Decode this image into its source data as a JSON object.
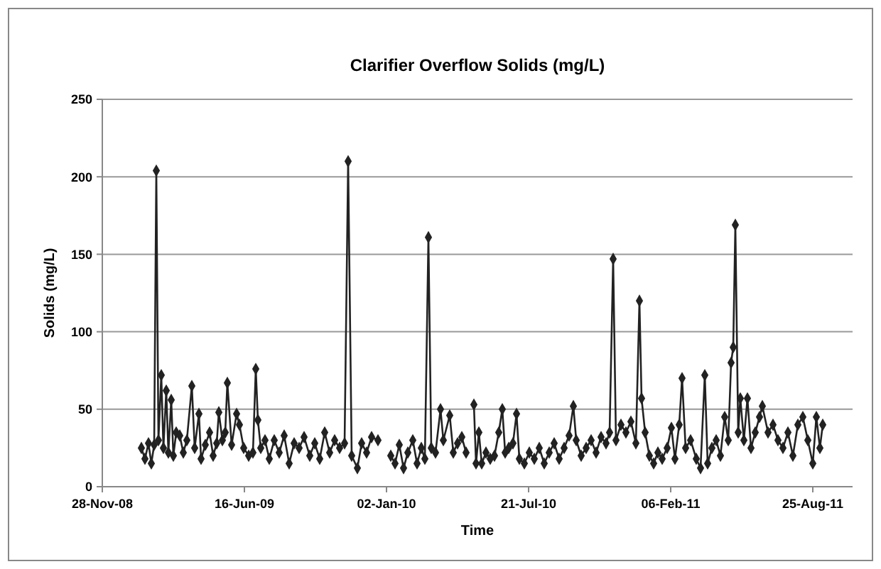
{
  "chart_data": {
    "type": "line",
    "title": "Clarifier Overflow Solids (mg/L)",
    "xlabel": "Time",
    "ylabel": "Solids (mg/L)",
    "xlim": [
      "2008-11-28",
      "2011-10-20"
    ],
    "xticks": [
      {
        "value": "2008-11-28",
        "label": "28-Nov-08"
      },
      {
        "value": "2009-06-16",
        "label": "16-Jun-09"
      },
      {
        "value": "2010-01-02",
        "label": "02-Jan-10"
      },
      {
        "value": "2010-07-21",
        "label": "21-Jul-10"
      },
      {
        "value": "2011-02-06",
        "label": "06-Feb-11"
      },
      {
        "value": "2011-08-25",
        "label": "25-Aug-11"
      }
    ],
    "ylim": [
      0,
      250
    ],
    "yticks": [
      0,
      50,
      100,
      150,
      200,
      250
    ],
    "grid": "y",
    "marker": "diamond",
    "line_style": "solid",
    "x": [
      "2009-01-22",
      "2009-01-27",
      "2009-02-01",
      "2009-02-05",
      "2009-02-09",
      "2009-02-12",
      "2009-02-15",
      "2009-02-19",
      "2009-02-22",
      "2009-02-26",
      "2009-03-01",
      "2009-03-05",
      "2009-03-08",
      "2009-03-12",
      "2009-03-17",
      "2009-03-22",
      "2009-03-27",
      "2009-04-03",
      "2009-04-07",
      "2009-04-13",
      "2009-04-16",
      "2009-04-22",
      "2009-04-28",
      "2009-05-03",
      "2009-05-08",
      "2009-05-11",
      "2009-05-16",
      "2009-05-20",
      "2009-05-23",
      "2009-05-29",
      "2009-06-05",
      "2009-06-09",
      "2009-06-15",
      "2009-06-22",
      "2009-06-28",
      "2009-07-02",
      "2009-07-05",
      "2009-07-09",
      "2009-07-15",
      "2009-07-21",
      "2009-07-28",
      "2009-08-04",
      "2009-08-11",
      "2009-08-18",
      "2009-08-25",
      "2009-09-01",
      "2009-09-08",
      "2009-09-16",
      "2009-09-23",
      "2009-09-30",
      "2009-10-07",
      "2009-10-14",
      "2009-10-21",
      "2009-10-28",
      "2009-11-04",
      "2009-11-09",
      "2009-11-14",
      "2009-11-22",
      "2009-11-28",
      "2009-12-05",
      "2009-12-12",
      "2009-12-21",
      "2009-12-28",
      "2010-01-08",
      "2010-01-14",
      "2010-01-20",
      "2010-01-26",
      "2010-02-01",
      "2010-02-08",
      "2010-02-14",
      "2010-02-20",
      "2010-02-25",
      "2010-03-02",
      "2010-03-06",
      "2010-03-12",
      "2010-03-19",
      "2010-03-23",
      "2010-04-01",
      "2010-04-06",
      "2010-04-12",
      "2010-04-18",
      "2010-04-24",
      "2010-04-30",
      "2010-05-05",
      "2010-05-08",
      "2010-05-12",
      "2010-05-16",
      "2010-05-22",
      "2010-05-28",
      "2010-06-03",
      "2010-06-09",
      "2010-06-14",
      "2010-06-18",
      "2010-06-23",
      "2010-06-29",
      "2010-07-04",
      "2010-07-08",
      "2010-07-15",
      "2010-07-22",
      "2010-07-29",
      "2010-08-05",
      "2010-08-12",
      "2010-08-19",
      "2010-08-26",
      "2010-09-02",
      "2010-09-09",
      "2010-09-16",
      "2010-09-22",
      "2010-09-26",
      "2010-10-03",
      "2010-10-10",
      "2010-10-17",
      "2010-10-24",
      "2010-10-31",
      "2010-11-07",
      "2010-11-12",
      "2010-11-17",
      "2010-11-21",
      "2010-11-28",
      "2010-12-05",
      "2010-12-12",
      "2010-12-19",
      "2010-12-24",
      "2010-12-27",
      "2011-01-01",
      "2011-01-07",
      "2011-01-13",
      "2011-01-19",
      "2011-01-25",
      "2011-02-01",
      "2011-02-07",
      "2011-02-12",
      "2011-02-18",
      "2011-02-22",
      "2011-02-27",
      "2011-03-06",
      "2011-03-14",
      "2011-03-20",
      "2011-03-26",
      "2011-03-30",
      "2011-04-05",
      "2011-04-11",
      "2011-04-17",
      "2011-04-23",
      "2011-04-28",
      "2011-05-02",
      "2011-05-05",
      "2011-05-08",
      "2011-05-12",
      "2011-05-15",
      "2011-05-20",
      "2011-05-25",
      "2011-05-30",
      "2011-06-05",
      "2011-06-11",
      "2011-06-15",
      "2011-06-23",
      "2011-06-30",
      "2011-07-07",
      "2011-07-14",
      "2011-07-21",
      "2011-07-28",
      "2011-08-04",
      "2011-08-11",
      "2011-08-18",
      "2011-08-25",
      "2011-08-30",
      "2011-09-04",
      "2011-09-08"
    ],
    "series": [
      {
        "color": "#222222",
        "values": [
          25,
          18,
          28,
          15,
          27,
          204,
          30,
          72,
          25,
          62,
          22,
          56,
          20,
          35,
          33,
          22,
          30,
          65,
          25,
          47,
          18,
          27,
          35,
          20,
          28,
          48,
          30,
          35,
          67,
          27,
          47,
          40,
          25,
          20,
          22,
          76,
          43,
          25,
          30,
          18,
          30,
          22,
          33,
          15,
          28,
          25,
          32,
          20,
          28,
          18,
          35,
          22,
          30,
          25,
          28,
          210,
          20,
          12,
          28,
          22,
          32,
          30,
          null,
          20,
          15,
          27,
          12,
          22,
          30,
          15,
          25,
          18,
          161,
          25,
          22,
          50,
          30,
          46,
          22,
          28,
          32,
          22,
          null,
          53,
          15,
          35,
          15,
          22,
          18,
          20,
          35,
          50,
          22,
          25,
          28,
          47,
          18,
          15,
          22,
          18,
          25,
          15,
          22,
          28,
          18,
          25,
          33,
          52,
          30,
          20,
          25,
          30,
          22,
          32,
          28,
          35,
          147,
          30,
          40,
          35,
          42,
          28,
          120,
          57,
          35,
          20,
          15,
          22,
          18,
          25,
          38,
          18,
          40,
          70,
          25,
          30,
          18,
          12,
          72,
          15,
          25,
          30,
          20,
          45,
          30,
          80,
          90,
          169,
          35,
          57,
          30,
          57,
          25,
          35,
          45,
          52,
          35,
          40,
          30,
          25,
          35,
          20,
          40,
          45,
          30,
          15,
          45,
          25,
          40
        ]
      }
    ]
  }
}
